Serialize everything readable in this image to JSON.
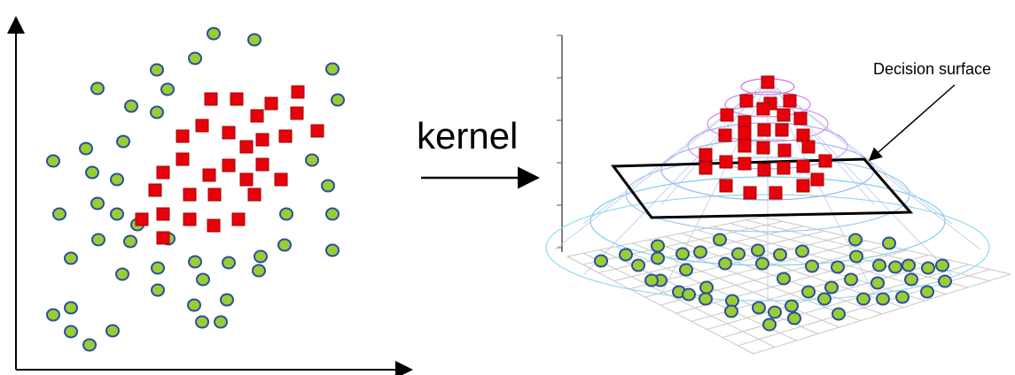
{
  "arrow_label": "kernel",
  "surface_label": "Decision surface"
}
